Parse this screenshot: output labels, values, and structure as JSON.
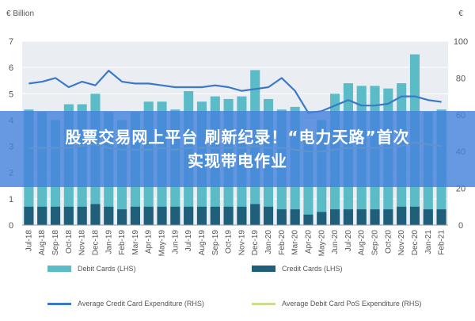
{
  "chart_data": {
    "type": "bar",
    "left_axis_label": "€ Billion",
    "right_axis_label": "€",
    "left_ylim": [
      0,
      7
    ],
    "right_ylim": [
      0,
      100
    ],
    "left_ticks": [
      "0",
      "1",
      "2",
      "3",
      "4",
      "5",
      "6",
      "7"
    ],
    "right_ticks": [
      "0",
      "20",
      "40",
      "60",
      "80",
      "100"
    ],
    "grid": true,
    "categories": [
      "Jul-18",
      "Aug-18",
      "Sep-18",
      "Oct-18",
      "Nov-18",
      "Dec-18",
      "Jan-19",
      "Feb-19",
      "Mar-19",
      "Apr-19",
      "May-19",
      "Jun-19",
      "Jul-19",
      "Aug-19",
      "Sep-19",
      "Oct-19",
      "Nov-19",
      "Dec-19",
      "Jan-20",
      "Feb-20",
      "Mar-20",
      "Apr-20",
      "May-20",
      "Jun-20",
      "Jul-20",
      "Aug-20",
      "Sep-20",
      "Oct-20",
      "Nov-20",
      "Dec-20",
      "Jan-21",
      "Feb-21"
    ],
    "series": [
      {
        "name": "Debit Cards (LHS)",
        "type": "bar",
        "axis": "left",
        "color": "#5bbcc7",
        "values": [
          4.4,
          4.3,
          4.0,
          4.6,
          4.6,
          5.0,
          4.3,
          4.0,
          4.3,
          4.7,
          4.7,
          4.4,
          5.1,
          4.7,
          4.9,
          4.8,
          4.9,
          5.9,
          4.8,
          4.4,
          4.5,
          3.5,
          4.0,
          5.0,
          5.4,
          5.3,
          5.3,
          5.2,
          5.4,
          6.5,
          4.3,
          4.4
        ]
      },
      {
        "name": "Credit Cards (LHS)",
        "type": "bar",
        "axis": "left",
        "color": "#1f5f7a",
        "values": [
          0.7,
          0.7,
          0.7,
          0.7,
          0.7,
          0.8,
          0.7,
          0.6,
          0.7,
          0.7,
          0.7,
          0.7,
          0.7,
          0.7,
          0.7,
          0.7,
          0.7,
          0.8,
          0.7,
          0.6,
          0.6,
          0.4,
          0.5,
          0.6,
          0.6,
          0.6,
          0.6,
          0.6,
          0.7,
          0.7,
          0.6,
          0.6
        ]
      },
      {
        "name": "Average Credit Card Expenditure (RHS)",
        "type": "line",
        "axis": "right",
        "color": "#3c78c8",
        "values": [
          77,
          78,
          80,
          75,
          78,
          76,
          84,
          78,
          77,
          77,
          76,
          75,
          75,
          75,
          76,
          75,
          73,
          74,
          75,
          80,
          73,
          61,
          62,
          65,
          68,
          65,
          65,
          66,
          70,
          70,
          68,
          67
        ]
      },
      {
        "name": "Average Debit Card PoS Expenditure (RHS)",
        "type": "line",
        "axis": "right",
        "color": "#c9dd94",
        "values": [
          42,
          42,
          42,
          42,
          43,
          44,
          42,
          41,
          41,
          41,
          42,
          41,
          42,
          42,
          42,
          42,
          42,
          43,
          42,
          42,
          41,
          40,
          40,
          41,
          42,
          42,
          42,
          42,
          43,
          45,
          44,
          43
        ]
      }
    ]
  },
  "banner": {
    "line1": "股票交易网上平台 刷新纪录！“电力天路”首次",
    "line2": "实现带电作业"
  }
}
